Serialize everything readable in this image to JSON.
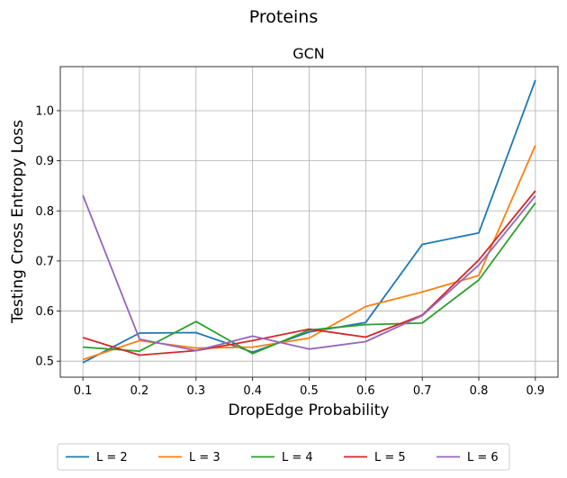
{
  "figure": {
    "suptitle": "Proteins"
  },
  "chart_data": {
    "type": "line",
    "title": "GCN",
    "xlabel": "DropEdge Probability",
    "ylabel": "Testing Cross Entropy Loss",
    "x": [
      0.1,
      0.2,
      0.3,
      0.4,
      0.5,
      0.6,
      0.7,
      0.8,
      0.9
    ],
    "x_tick_labels": [
      "0.1",
      "0.2",
      "0.3",
      "0.4",
      "0.5",
      "0.6",
      "0.7",
      "0.8",
      "0.9"
    ],
    "y_ticks": [
      0.5,
      0.6,
      0.7,
      0.8,
      0.9,
      1.0
    ],
    "y_tick_labels": [
      "0.5",
      "0.6",
      "0.7",
      "0.8",
      "0.9",
      "1.0"
    ],
    "xlim": [
      0.06,
      0.94
    ],
    "ylim": [
      0.468,
      1.088
    ],
    "grid": true,
    "legend_position": "bottom-center",
    "series": [
      {
        "name": "L = 2",
        "color": "#1f77b4",
        "values": [
          0.497,
          0.556,
          0.557,
          0.518,
          0.558,
          0.577,
          0.733,
          0.756,
          1.061
        ]
      },
      {
        "name": "L = 3",
        "color": "#ff7f0e",
        "values": [
          0.503,
          0.541,
          0.526,
          0.528,
          0.546,
          0.609,
          0.638,
          0.671,
          0.931
        ]
      },
      {
        "name": "L = 4",
        "color": "#2ca02c",
        "values": [
          0.528,
          0.52,
          0.579,
          0.515,
          0.562,
          0.573,
          0.576,
          0.662,
          0.816
        ]
      },
      {
        "name": "L = 5",
        "color": "#d62728",
        "values": [
          0.547,
          0.512,
          0.521,
          0.541,
          0.564,
          0.548,
          0.592,
          0.702,
          0.84
        ]
      },
      {
        "name": "L = 6",
        "color": "#9467bd",
        "values": [
          0.831,
          0.544,
          0.521,
          0.55,
          0.524,
          0.539,
          0.591,
          0.692,
          0.83
        ]
      }
    ]
  }
}
